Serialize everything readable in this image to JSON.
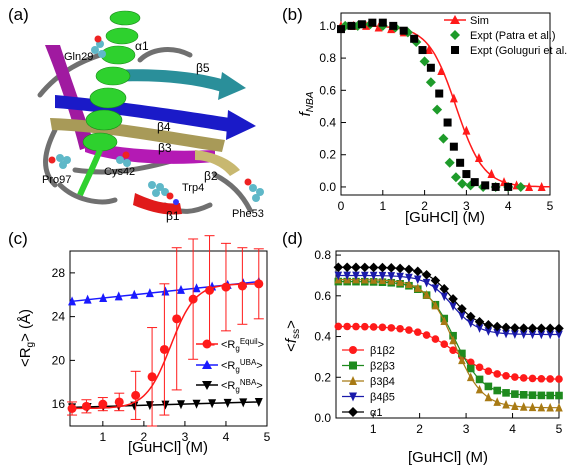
{
  "panel_a": {
    "label": "(a)",
    "structure_labels": [
      "α1",
      "β5",
      "β4",
      "β3",
      "β2",
      "β1"
    ],
    "residue_labels": [
      "Gln29",
      "Pro97",
      "Cys42",
      "Trp4",
      "Phe53"
    ]
  },
  "chart_data": [
    {
      "panel": "(b)",
      "type": "scatter",
      "xlabel": "[GuHCl] (M)",
      "ylabel": "fNBA",
      "xlim": [
        0,
        5
      ],
      "ylim": [
        -0.05,
        1.08
      ],
      "xticks": [
        "0",
        "1",
        "2",
        "3",
        "4",
        "5"
      ],
      "yticks": [
        "0.0",
        "0.2",
        "0.4",
        "0.6",
        "0.8",
        "1.0"
      ],
      "legend_position": "top-right",
      "series": [
        {
          "name": "Sim",
          "color": "#ff1a1a",
          "marker": "triangle",
          "line": true,
          "x": [
            0.0,
            0.3,
            0.6,
            0.9,
            1.2,
            1.5,
            1.8,
            2.1,
            2.4,
            2.7,
            3.0,
            3.3,
            3.6,
            3.9,
            4.2,
            4.5,
            4.8
          ],
          "y": [
            1.0,
            1.0,
            1.0,
            0.99,
            0.98,
            0.96,
            0.92,
            0.85,
            0.72,
            0.55,
            0.35,
            0.18,
            0.08,
            0.03,
            0.01,
            0.0,
            0.0
          ]
        },
        {
          "name": "Expt (Patra et al.)",
          "color": "#1e9b2a",
          "marker": "diamond",
          "line": false,
          "x": [
            0.1,
            0.4,
            0.7,
            1.0,
            1.3,
            1.6,
            1.8,
            2.0,
            2.15,
            2.3,
            2.45,
            2.6,
            2.75,
            2.9,
            3.1,
            3.4,
            3.7,
            4.0,
            4.3
          ],
          "y": [
            1.0,
            1.0,
            1.01,
            1.0,
            0.99,
            0.96,
            0.9,
            0.78,
            0.65,
            0.48,
            0.3,
            0.15,
            0.06,
            0.02,
            0.01,
            0.0,
            0.0,
            0.0,
            0.0
          ]
        },
        {
          "name": "Expt (Goluguri et al.)",
          "color": "#000000",
          "marker": "square",
          "line": false,
          "x": [
            0.0,
            0.25,
            0.5,
            0.75,
            1.0,
            1.25,
            1.5,
            1.75,
            1.95,
            2.15,
            2.35,
            2.55,
            2.7,
            2.85,
            3.0,
            3.2,
            3.45,
            3.7,
            4.0
          ],
          "y": [
            0.98,
            1.0,
            1.01,
            1.02,
            1.02,
            1.0,
            0.97,
            0.92,
            0.85,
            0.74,
            0.58,
            0.4,
            0.25,
            0.15,
            0.08,
            0.03,
            0.01,
            0.0,
            0.0
          ]
        }
      ]
    },
    {
      "panel": "(c)",
      "type": "line",
      "xlabel": "[GuHCl] (M)",
      "ylabel": "<Rg> (Å)",
      "xlim": [
        0.2,
        5
      ],
      "ylim": [
        14,
        30
      ],
      "xticks": [
        "1",
        "2",
        "3",
        "4",
        "5"
      ],
      "yticks": [
        "16",
        "20",
        "24",
        "28"
      ],
      "legend_position": "center-right",
      "series": [
        {
          "name": "<Rg Equil>",
          "color": "#ff1a1a",
          "marker": "circle",
          "x": [
            0.25,
            0.6,
            1.0,
            1.4,
            1.8,
            2.2,
            2.5,
            2.8,
            3.2,
            3.6,
            4.0,
            4.4,
            4.8
          ],
          "y": [
            15.6,
            15.8,
            16.0,
            16.2,
            16.8,
            18.5,
            21.0,
            23.8,
            25.6,
            26.4,
            26.7,
            26.8,
            27.0
          ],
          "err": [
            0.6,
            0.6,
            0.6,
            0.8,
            2.2,
            4.5,
            6.0,
            6.5,
            5.5,
            5.0,
            4.0,
            3.5,
            3.2
          ]
        },
        {
          "name": "<Rg UBA>",
          "color": "#1a1aff",
          "marker": "triangle",
          "x": [
            0.25,
            4.8
          ],
          "y": [
            25.4,
            27.2
          ]
        },
        {
          "name": "<Rg NBA>",
          "color": "#000000",
          "marker": "triangle-down",
          "x": [
            0.25,
            4.8
          ],
          "y": [
            15.7,
            16.2
          ]
        }
      ]
    },
    {
      "panel": "(d)",
      "type": "line",
      "xlabel": "[GuHCl] (M)",
      "ylabel": "<fss>",
      "xlim": [
        0.2,
        5
      ],
      "ylim": [
        0.0,
        0.82
      ],
      "xticks": [
        "1",
        "2",
        "3",
        "4",
        "5"
      ],
      "yticks": [
        "0.0",
        "0.2",
        "0.4",
        "0.6",
        "0.8"
      ],
      "legend_position": "bottom-left",
      "series": [
        {
          "name": "β1β2",
          "color": "#ff1a1a",
          "marker": "circle",
          "y0": 0.45,
          "y1": 0.19,
          "mid": 2.8,
          "w": 0.4
        },
        {
          "name": "β2β3",
          "color": "#1e8a1e",
          "marker": "square",
          "y0": 0.67,
          "y1": 0.11,
          "mid": 2.75,
          "w": 0.3
        },
        {
          "name": "β3β4",
          "color": "#a87a14",
          "marker": "triangle",
          "y0": 0.68,
          "y1": 0.05,
          "mid": 2.75,
          "w": 0.3
        },
        {
          "name": "β4β5",
          "color": "#1a1aaa",
          "marker": "triangle-down",
          "y0": 0.7,
          "y1": 0.41,
          "mid": 2.7,
          "w": 0.28
        },
        {
          "name": "α1",
          "color": "#000000",
          "marker": "diamond",
          "y0": 0.74,
          "y1": 0.44,
          "mid": 2.7,
          "w": 0.28
        }
      ]
    }
  ]
}
